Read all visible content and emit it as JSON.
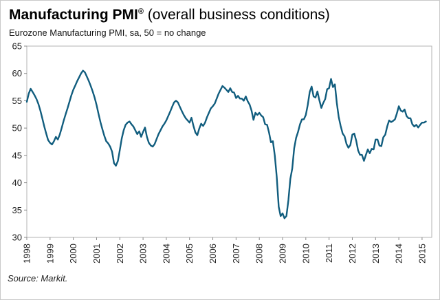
{
  "header": {
    "title_main": "Manufacturing PMI",
    "title_reg": "®",
    "title_suffix": " (overall business conditions)",
    "subtitle": "Eurozone Manufacturing PMI, sa, 50 = no change"
  },
  "footer": {
    "source": "Source: Markit."
  },
  "chart_data": {
    "type": "line",
    "title": "Manufacturing PMI (overall business conditions)",
    "subtitle": "Eurozone Manufacturing PMI, sa, 50 = no change",
    "xlabel": "",
    "ylabel": "",
    "ylim": [
      30,
      65
    ],
    "yticks": [
      30,
      35,
      40,
      45,
      50,
      55,
      60,
      65
    ],
    "x_frequency": "monthly",
    "x_start": "1998-01",
    "xticklabels": [
      "1998",
      "1999",
      "2000",
      "2001",
      "2002",
      "2003",
      "2004",
      "2005",
      "2006",
      "2007",
      "2008",
      "2009",
      "2010",
      "2011",
      "2012",
      "2013",
      "2014",
      "2015"
    ],
    "grid": false,
    "legend": "none",
    "line_color": "#115d7e",
    "frame_color": "#b3b3b3",
    "series": [
      {
        "name": "Eurozone Manufacturing PMI",
        "values": [
          54.8,
          56.3,
          57.2,
          56.6,
          56.0,
          55.3,
          54.4,
          53.2,
          51.8,
          50.3,
          49.0,
          47.8,
          47.3,
          47.0,
          47.6,
          48.4,
          47.9,
          48.8,
          50.0,
          51.3,
          52.5,
          53.6,
          54.8,
          56.0,
          57.0,
          57.8,
          58.6,
          59.3,
          60.0,
          60.5,
          60.2,
          59.4,
          58.6,
          57.7,
          56.7,
          55.6,
          54.2,
          52.6,
          51.1,
          49.8,
          48.6,
          47.6,
          47.2,
          46.6,
          45.7,
          43.6,
          43.1,
          44.0,
          46.0,
          48.1,
          49.6,
          50.6,
          51.0,
          51.2,
          50.7,
          50.3,
          49.6,
          48.9,
          49.4,
          48.4,
          49.3,
          50.1,
          48.4,
          47.3,
          46.8,
          46.6,
          47.1,
          48.0,
          48.9,
          49.6,
          50.3,
          50.8,
          51.4,
          52.2,
          53.0,
          53.9,
          54.7,
          55.0,
          54.7,
          53.9,
          53.1,
          52.4,
          51.8,
          51.4,
          51.0,
          51.9,
          50.4,
          49.2,
          48.7,
          49.9,
          50.8,
          50.4,
          51.0,
          52.0,
          52.8,
          53.6,
          54.0,
          54.5,
          55.4,
          56.3,
          57.0,
          57.7,
          57.4,
          57.0,
          56.6,
          57.3,
          56.6,
          56.5,
          55.5,
          55.9,
          55.4,
          55.4,
          55.0,
          55.8,
          54.9,
          54.3,
          53.2,
          51.5,
          52.8,
          52.4,
          52.8,
          52.3,
          52.0,
          50.7,
          50.6,
          49.2,
          47.4,
          47.6,
          45.0,
          41.1,
          35.6,
          33.9,
          34.4,
          33.5,
          33.9,
          36.8,
          40.7,
          42.6,
          46.3,
          48.2,
          49.3,
          50.7,
          51.6,
          51.6,
          52.4,
          54.2,
          56.6,
          57.6,
          55.8,
          55.6,
          56.7,
          55.1,
          53.7,
          54.6,
          55.3,
          57.1,
          57.3,
          59.0,
          57.5,
          58.0,
          54.6,
          52.0,
          50.4,
          49.0,
          48.5,
          47.1,
          46.4,
          46.9,
          48.8,
          49.0,
          47.7,
          45.9,
          45.1,
          45.1,
          44.0,
          45.1,
          46.1,
          45.4,
          46.2,
          46.1,
          47.9,
          47.9,
          46.8,
          46.7,
          48.3,
          48.8,
          50.3,
          51.4,
          51.1,
          51.3,
          51.6,
          52.7,
          54.0,
          53.2,
          53.0,
          53.4,
          52.2,
          51.8,
          51.8,
          50.7,
          50.3,
          50.6,
          50.1,
          50.6,
          51.0,
          51.0,
          51.2
        ]
      }
    ]
  }
}
